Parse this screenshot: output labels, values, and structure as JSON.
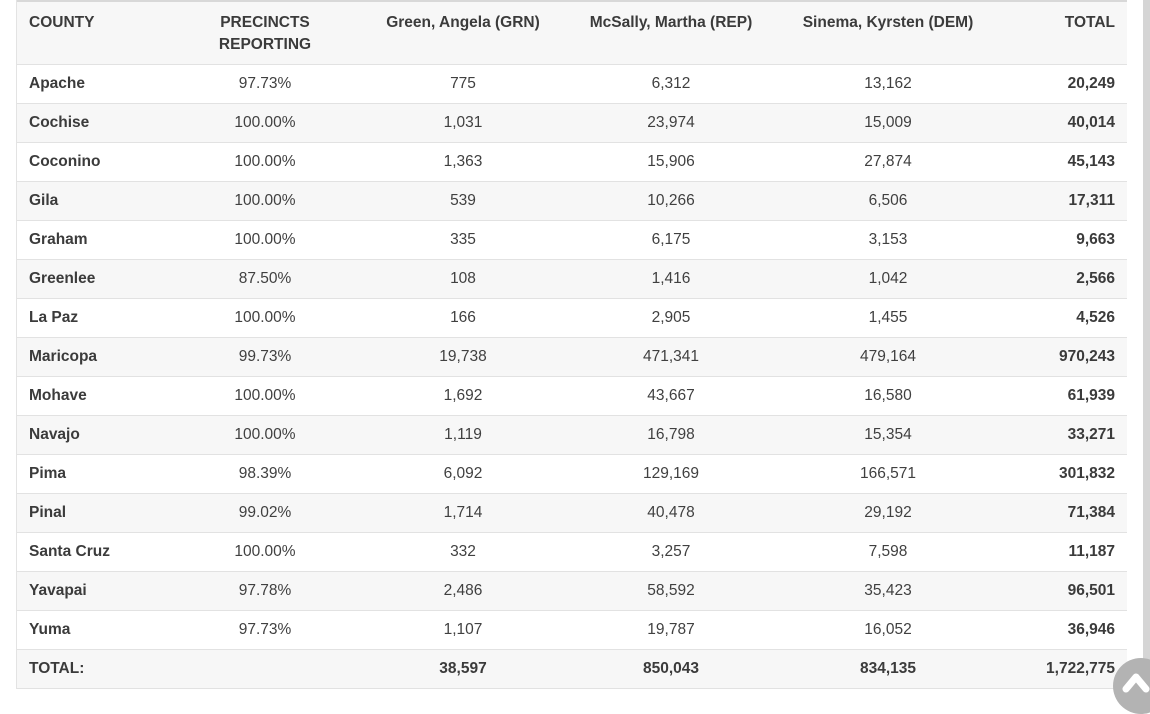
{
  "table": {
    "columns": [
      {
        "key": "county",
        "label": "COUNTY",
        "align": "left",
        "wrap": false
      },
      {
        "key": "precincts",
        "label": "PRECINCTS REPORTING",
        "align": "center",
        "wrap": true
      },
      {
        "key": "green",
        "label": "Green, Angela (GRN)",
        "align": "center",
        "wrap": false
      },
      {
        "key": "mcsally",
        "label": "McSally, Martha (REP)",
        "align": "center",
        "wrap": false
      },
      {
        "key": "sinema",
        "label": "Sinema, Kyrsten (DEM)",
        "align": "center",
        "wrap": false
      },
      {
        "key": "total",
        "label": "TOTAL",
        "align": "right",
        "wrap": false
      }
    ],
    "rows": [
      {
        "county": "Apache",
        "precincts": "97.73%",
        "green": "775",
        "mcsally": "6,312",
        "sinema": "13,162",
        "total": "20,249"
      },
      {
        "county": "Cochise",
        "precincts": "100.00%",
        "green": "1,031",
        "mcsally": "23,974",
        "sinema": "15,009",
        "total": "40,014"
      },
      {
        "county": "Coconino",
        "precincts": "100.00%",
        "green": "1,363",
        "mcsally": "15,906",
        "sinema": "27,874",
        "total": "45,143"
      },
      {
        "county": "Gila",
        "precincts": "100.00%",
        "green": "539",
        "mcsally": "10,266",
        "sinema": "6,506",
        "total": "17,311"
      },
      {
        "county": "Graham",
        "precincts": "100.00%",
        "green": "335",
        "mcsally": "6,175",
        "sinema": "3,153",
        "total": "9,663"
      },
      {
        "county": "Greenlee",
        "precincts": "87.50%",
        "green": "108",
        "mcsally": "1,416",
        "sinema": "1,042",
        "total": "2,566"
      },
      {
        "county": "La Paz",
        "precincts": "100.00%",
        "green": "166",
        "mcsally": "2,905",
        "sinema": "1,455",
        "total": "4,526"
      },
      {
        "county": "Maricopa",
        "precincts": "99.73%",
        "green": "19,738",
        "mcsally": "471,341",
        "sinema": "479,164",
        "total": "970,243"
      },
      {
        "county": "Mohave",
        "precincts": "100.00%",
        "green": "1,692",
        "mcsally": "43,667",
        "sinema": "16,580",
        "total": "61,939"
      },
      {
        "county": "Navajo",
        "precincts": "100.00%",
        "green": "1,119",
        "mcsally": "16,798",
        "sinema": "15,354",
        "total": "33,271"
      },
      {
        "county": "Pima",
        "precincts": "98.39%",
        "green": "6,092",
        "mcsally": "129,169",
        "sinema": "166,571",
        "total": "301,832"
      },
      {
        "county": "Pinal",
        "precincts": "99.02%",
        "green": "1,714",
        "mcsally": "40,478",
        "sinema": "29,192",
        "total": "71,384"
      },
      {
        "county": "Santa Cruz",
        "precincts": "100.00%",
        "green": "332",
        "mcsally": "3,257",
        "sinema": "7,598",
        "total": "11,187"
      },
      {
        "county": "Yavapai",
        "precincts": "97.78%",
        "green": "2,486",
        "mcsally": "58,592",
        "sinema": "35,423",
        "total": "96,501"
      },
      {
        "county": "Yuma",
        "precincts": "97.73%",
        "green": "1,107",
        "mcsally": "19,787",
        "sinema": "16,052",
        "total": "36,946"
      }
    ],
    "total_row": {
      "county": "TOTAL:",
      "precincts": "",
      "green": "38,597",
      "mcsally": "850,043",
      "sinema": "834,135",
      "total": "1,722,775"
    }
  },
  "scroll_button": {
    "icon": "chevron-up-icon"
  },
  "colors": {
    "stripe_bg": "#f7f7f7",
    "row_border": "#e2e2e2",
    "table_top_border": "#d8d8d8",
    "text": "#3d3d3d",
    "scrollbar": "#d5d5d5",
    "scroll_button_bg": "#b3b3b3",
    "scroll_button_chevron": "#ffffff"
  }
}
